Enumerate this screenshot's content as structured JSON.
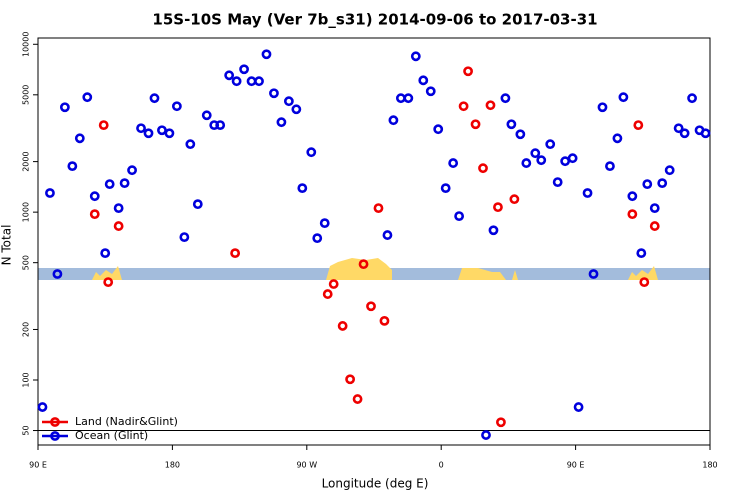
{
  "chart_data": {
    "type": "scatter",
    "title": "15S-10S May (Ver 7b_s31)   2014-09-06 to 2017-03-31",
    "x_label": "Longitude (deg E)",
    "y_label": "N Total",
    "log_y": true,
    "legend": "lower left",
    "hline": 50,
    "xlim": [
      90,
      540
    ],
    "ylim": [
      41,
      10900
    ],
    "xticks": [
      {
        "value": 90,
        "label": "90 E"
      },
      180,
      {
        "value": 270,
        "label": "90 W"
      },
      {
        "value": 360,
        "label": "0"
      },
      {
        "value": 450,
        "label": "90 E"
      },
      {
        "value": 540,
        "label": "180"
      }
    ],
    "yticks": [
      50,
      100,
      200,
      500,
      1000,
      2000,
      5000,
      10000
    ],
    "series": [
      {
        "name": "Land (Nadir&Glint)",
        "color": "#ee0000",
        "x": [
          128,
          134,
          137,
          144,
          222,
          284,
          288,
          294,
          299,
          304,
          308,
          313,
          318,
          322,
          375,
          378,
          383,
          388,
          393,
          398,
          400,
          409,
          488,
          492,
          496,
          503
        ],
        "values": [
          973,
          3300,
          383,
          826,
          570,
          325,
          373,
          210,
          101,
          77,
          490,
          275,
          1057,
          225,
          4276,
          6910,
          3340,
          1828,
          4335,
          1071,
          56,
          1195,
          973,
          3300,
          383,
          826
        ]
      },
      {
        "name": "Ocean (Glint)",
        "color": "#0000dd",
        "x": [
          93,
          98,
          103,
          108,
          113,
          118,
          123,
          128,
          135,
          138,
          144,
          148,
          153,
          159,
          164,
          168,
          173,
          178,
          183,
          188,
          192,
          197,
          203,
          208,
          212,
          218,
          223,
          228,
          233,
          238,
          243,
          248,
          253,
          258,
          263,
          267,
          273,
          277,
          282,
          324,
          328,
          333,
          338,
          343,
          348,
          353,
          358,
          363,
          368,
          372,
          390,
          395,
          403,
          407,
          413,
          417,
          423,
          427,
          433,
          438,
          443,
          448,
          452,
          458,
          462,
          468,
          473,
          478,
          482,
          488,
          494,
          498,
          503,
          508,
          513,
          519,
          523,
          528,
          533,
          537
        ],
        "values": [
          69,
          1300,
          428,
          4217,
          1880,
          2754,
          4840,
          1245,
          570,
          1469,
          1057,
          1489,
          1778,
          3162,
          2951,
          4775,
          3076,
          2951,
          4276,
          710,
          2541,
          1116,
          3776,
          3300,
          3300,
          6535,
          6026,
          7100,
          6026,
          6026,
          8720,
          5110,
          3435,
          4580,
          4100,
          1390,
          2276,
          700,
          860,
          730,
          3530,
          4775,
          4775,
          8480,
          6100,
          5250,
          3120,
          1390,
          1960,
          947,
          47,
          780,
          4775,
          3340,
          2910,
          1960,
          2245,
          2040,
          2541,
          1510,
          2012,
          2096,
          69,
          1300,
          428,
          4217,
          1880,
          2754,
          4840,
          1245,
          570,
          1469,
          1057,
          1489,
          1778,
          3162,
          2951,
          4775,
          3076,
          2951
        ]
      }
    ]
  }
}
